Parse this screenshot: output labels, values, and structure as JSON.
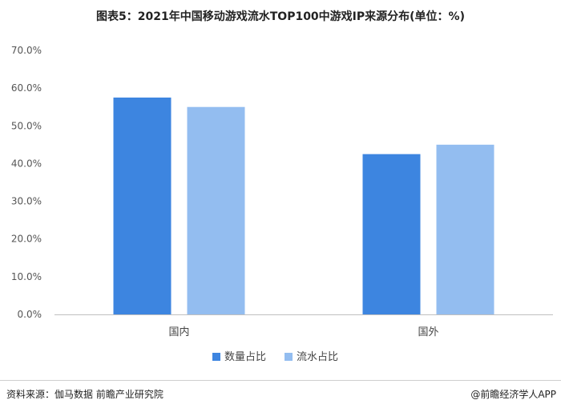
{
  "title": "图表5：2021年中国移动游戏流水TOP100中游戏IP来源分布(单位：%)",
  "source": "资料来源：伽马数据 前瞻产业研究院",
  "brand": "@前瞻经济学人APP",
  "chart_data": {
    "type": "bar",
    "title": "图表5：2021年中国移动游戏流水TOP100中游戏IP来源分布(单位：%)",
    "categories": [
      "国内",
      "国外"
    ],
    "series": [
      {
        "name": "数量占比",
        "values": [
          57.5,
          42.5
        ],
        "color": "#3d85e0"
      },
      {
        "name": "流水占比",
        "values": [
          55.0,
          45.0
        ],
        "color": "#93bdf0"
      }
    ],
    "y_ticks": [
      "0.0%",
      "10.0%",
      "20.0%",
      "30.0%",
      "40.0%",
      "50.0%",
      "60.0%",
      "70.0%"
    ],
    "ylim": [
      0,
      70
    ],
    "grid": false,
    "legend": "bottom-center"
  }
}
